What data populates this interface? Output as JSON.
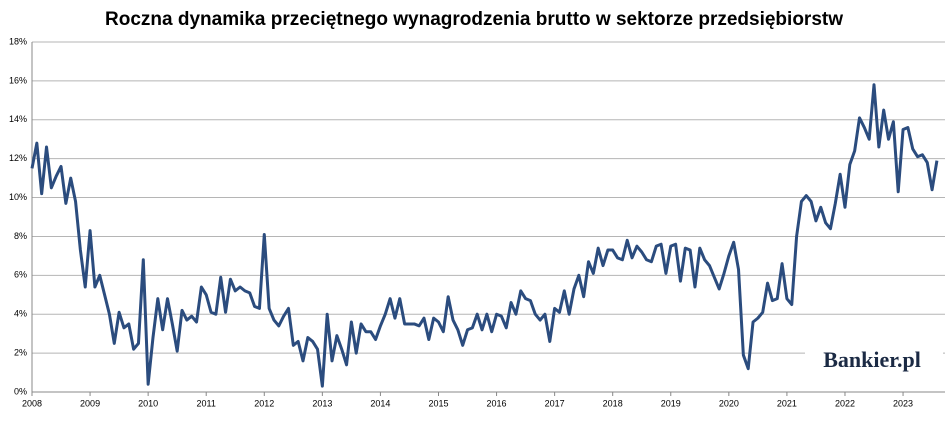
{
  "chart_data": {
    "type": "line",
    "title": "Roczna dynamika przeciętnego wynagrodzenia brutto w sektorze przedsiębiorstw",
    "watermark": "Bankier.pl",
    "categories": [
      "2008",
      null,
      null,
      null,
      null,
      null,
      null,
      null,
      null,
      null,
      null,
      null,
      "2009",
      null,
      null,
      null,
      null,
      null,
      null,
      null,
      null,
      null,
      null,
      null,
      "2010",
      null,
      null,
      null,
      null,
      null,
      null,
      null,
      null,
      null,
      null,
      null,
      "2011",
      null,
      null,
      null,
      null,
      null,
      null,
      null,
      null,
      null,
      null,
      null,
      "2012",
      null,
      null,
      null,
      null,
      null,
      null,
      null,
      null,
      null,
      null,
      null,
      "2013",
      null,
      null,
      null,
      null,
      null,
      null,
      null,
      null,
      null,
      null,
      null,
      "2014",
      null,
      null,
      null,
      null,
      null,
      null,
      null,
      null,
      null,
      null,
      null,
      "2015",
      null,
      null,
      null,
      null,
      null,
      null,
      null,
      null,
      null,
      null,
      null,
      "2016",
      null,
      null,
      null,
      null,
      null,
      null,
      null,
      null,
      null,
      null,
      null,
      "2017",
      null,
      null,
      null,
      null,
      null,
      null,
      null,
      null,
      null,
      null,
      null,
      "2018",
      null,
      null,
      null,
      null,
      null,
      null,
      null,
      null,
      null,
      null,
      null,
      "2019",
      null,
      null,
      null,
      null,
      null,
      null,
      null,
      null,
      null,
      null,
      null,
      "2020",
      null,
      null,
      null,
      null,
      null,
      null,
      null,
      null,
      null,
      null,
      null,
      "2021",
      null,
      null,
      null,
      null,
      null,
      null,
      null,
      null,
      null,
      null,
      null,
      "2022",
      null,
      null,
      null,
      null,
      null,
      null,
      null,
      null,
      null,
      null,
      null,
      "2023",
      null,
      null,
      null,
      null,
      null,
      null,
      null
    ],
    "series": [
      {
        "color": "#2b4c7e",
        "values": [
          11.5,
          12.8,
          10.2,
          12.6,
          10.5,
          11.1,
          11.6,
          9.7,
          11.0,
          9.8,
          7.3,
          5.4,
          8.3,
          5.4,
          6.0,
          5.0,
          4.0,
          2.5,
          4.1,
          3.3,
          3.5,
          2.2,
          2.5,
          6.8,
          0.4,
          2.8,
          4.8,
          3.2,
          4.8,
          3.5,
          2.1,
          4.2,
          3.7,
          3.9,
          3.6,
          5.4,
          5.0,
          4.1,
          4.0,
          5.9,
          4.1,
          5.8,
          5.2,
          5.4,
          5.2,
          5.1,
          4.4,
          4.3,
          8.1,
          4.3,
          3.7,
          3.4,
          3.9,
          4.3,
          2.4,
          2.6,
          1.6,
          2.8,
          2.6,
          2.2,
          0.3,
          4.0,
          1.6,
          2.9,
          2.2,
          1.4,
          3.6,
          2.0,
          3.5,
          3.1,
          3.1,
          2.7,
          3.4,
          4.0,
          4.8,
          3.8,
          4.8,
          3.5,
          3.5,
          3.5,
          3.4,
          3.8,
          2.7,
          3.8,
          3.6,
          3.1,
          4.9,
          3.7,
          3.2,
          2.4,
          3.2,
          3.3,
          4.0,
          3.2,
          4.0,
          3.1,
          4.0,
          3.9,
          3.3,
          4.6,
          4.0,
          5.2,
          4.8,
          4.7,
          4.0,
          3.7,
          4.0,
          2.6,
          4.3,
          4.1,
          5.2,
          4.0,
          5.3,
          6.0,
          4.9,
          6.7,
          6.1,
          7.4,
          6.5,
          7.3,
          7.3,
          6.9,
          6.8,
          7.8,
          6.9,
          7.5,
          7.2,
          6.8,
          6.7,
          7.5,
          7.6,
          6.1,
          7.5,
          7.6,
          5.7,
          7.4,
          7.3,
          5.4,
          7.4,
          6.8,
          6.5,
          5.9,
          5.3,
          6.1,
          7.0,
          7.7,
          6.3,
          1.9,
          1.2,
          3.6,
          3.8,
          4.1,
          5.6,
          4.7,
          4.8,
          6.6,
          4.8,
          4.5,
          8.0,
          9.8,
          10.1,
          9.8,
          8.8,
          9.5,
          8.7,
          8.4,
          9.7,
          11.2,
          9.5,
          11.7,
          12.4,
          14.1,
          13.6,
          13.0,
          15.8,
          12.6,
          14.5,
          13.0,
          13.9,
          10.3,
          13.5,
          13.6,
          12.5,
          12.1,
          12.2,
          11.8,
          10.4,
          11.9
        ]
      }
    ],
    "ylim": [
      0,
      18
    ],
    "yticks": [
      {
        "value": 0,
        "label": "0%"
      },
      {
        "value": 2,
        "label": "2%"
      },
      {
        "value": 4,
        "label": "4%"
      },
      {
        "value": 6,
        "label": "6%"
      },
      {
        "value": 8,
        "label": "8%"
      },
      {
        "value": 10,
        "label": "10%"
      },
      {
        "value": 12,
        "label": "12%"
      },
      {
        "value": 14,
        "label": "14%"
      },
      {
        "value": 16,
        "label": "16%"
      },
      {
        "value": 18,
        "label": "18%"
      }
    ],
    "grid": true
  }
}
